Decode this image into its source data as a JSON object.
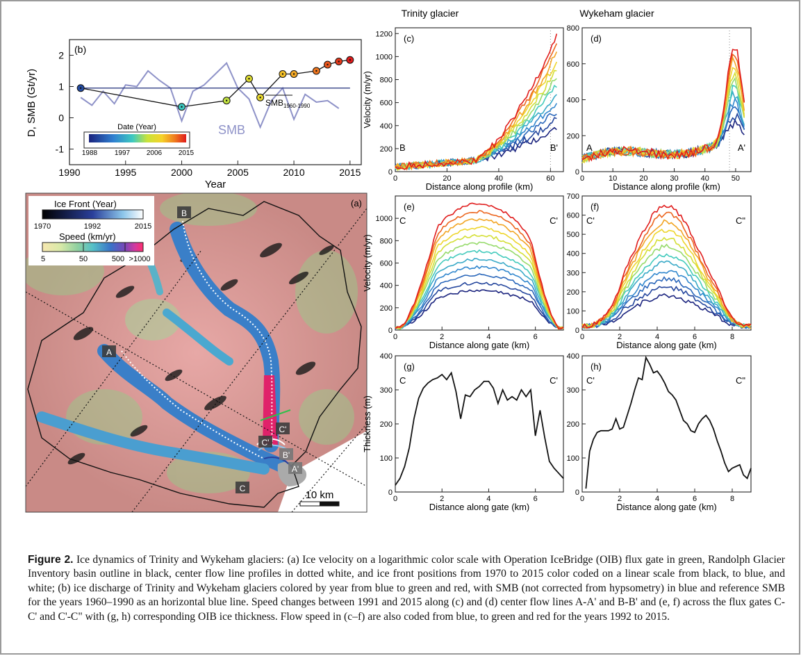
{
  "panel_b": {
    "label": "(b)",
    "ylabel": "D, SMB (Gt/yr)",
    "xlabel": "Year",
    "smb_label": "SMB",
    "ref_label": "SMB",
    "ref_sub": "1960-1990",
    "colorbar_title": "Date (Year)",
    "colorbar_ticks": [
      "1988",
      "1997",
      "2006",
      "2015"
    ]
  },
  "panel_a": {
    "label": "(a)",
    "legend_front_title": "Ice Front (Year)",
    "legend_front_ticks": [
      "1970",
      "1992",
      "2015"
    ],
    "legend_speed_title": "Speed (km/yr)",
    "legend_speed_ticks": [
      "5",
      "50",
      "500",
      ">1000"
    ],
    "markers": [
      "B",
      "A",
      "C'",
      "C'",
      "B'",
      "A'",
      "C"
    ],
    "scalebar": "10 km"
  },
  "titles": {
    "trinity": "Trinity glacier",
    "wykeham": "Wykeham glacier"
  },
  "panels_right": {
    "c": {
      "label": "(c)",
      "ylabel": "Velocity (m/yr)",
      "xlabel": "Distance along profile (km)",
      "left_mark": "B",
      "right_mark": "B'"
    },
    "d": {
      "label": "(d)",
      "ylabel": "",
      "xlabel": "Distance along profile (km)",
      "left_mark": "A",
      "right_mark": "A'"
    },
    "e": {
      "label": "(e)",
      "ylabel": "Velocity (m/yr)",
      "xlabel": "Distance along gate (km)",
      "left_mark": "C",
      "right_mark": "C'"
    },
    "f": {
      "label": "(f)",
      "ylabel": "",
      "xlabel": "Distance along gate (km)",
      "left_mark": "C'",
      "right_mark": "C\""
    },
    "g": {
      "label": "(g)",
      "ylabel": "Thickness (m)",
      "xlabel": "Distance along gate (km)",
      "left_mark": "C",
      "right_mark": "C'"
    },
    "h": {
      "label": "(h)",
      "ylabel": "",
      "xlabel": "Distance along gate (km)",
      "left_mark": "C'",
      "right_mark": "C\""
    }
  },
  "caption": {
    "lead": "Figure 2.",
    "text": "Ice dynamics of Trinity and Wykeham glaciers: (a) Ice velocity on a logarithmic color scale with Operation IceBridge (OIB) flux gate in green, Randolph Glacier Inventory basin outline in black, center flow line profiles in dotted white, and ice front positions from 1970 to 2015 color coded on a linear scale from black, to blue, and white; (b) ice discharge of Trinity and Wykeham glaciers colored by year from blue to green and red, with SMB (not corrected from hypsometry) in blue and reference SMB for the years 1960–1990 as an horizontal blue line. Speed changes between 1991 and 2015 along (c) and (d) center flow lines A-A' and B-B' and (e, f) across the flux gates C-C' and C'-C\" with (g, h) corresponding OIB ice thickness. Flow speed in (c–f) are also coded from blue, to green and red for the years 1992 to 2015."
  },
  "chart_data": [
    {
      "type": "line",
      "id": "b",
      "ylabel": "D, SMB (Gt/yr)",
      "xlabel": "Year",
      "xlim": [
        1990,
        2016
      ],
      "ylim": [
        -1.5,
        2.5
      ],
      "xticks": [
        1990,
        1995,
        2000,
        2005,
        2010,
        2015
      ],
      "yticks": [
        -1,
        0,
        1,
        2
      ],
      "series": [
        {
          "name": "SMB",
          "color": "#8e92c8",
          "x": [
            1991,
            1992,
            1993,
            1994,
            1995,
            1996,
            1997,
            1998,
            1999,
            2000,
            2001,
            2002,
            2003,
            2004,
            2005,
            2006,
            2007,
            2008,
            2009,
            2010,
            2011,
            2012,
            2013,
            2014
          ],
          "values": [
            0.65,
            0.4,
            0.85,
            0.45,
            1.05,
            1.0,
            1.5,
            1.2,
            0.95,
            -0.1,
            0.85,
            1.05,
            1.4,
            1.75,
            0.95,
            0.6,
            -0.3,
            0.55,
            0.95,
            -0.05,
            0.75,
            0.5,
            0.55,
            0.3
          ]
        },
        {
          "name": "SMB1960-1990",
          "color": "#1c2b78",
          "x": [
            1991,
            2015
          ],
          "values": [
            0.95,
            0.95
          ]
        },
        {
          "name": "D",
          "color": "#111111",
          "x": [
            1991,
            2000,
            2004,
            2006,
            2007,
            2009,
            2010,
            2012,
            2013,
            2014,
            2015
          ],
          "values": [
            0.95,
            0.35,
            0.55,
            1.25,
            0.65,
            1.4,
            1.4,
            1.5,
            1.7,
            1.8,
            1.85
          ]
        }
      ]
    },
    {
      "type": "line",
      "id": "c",
      "xlim": [
        0,
        65
      ],
      "ylim": [
        0,
        1250
      ],
      "xticks": [
        0,
        20,
        40,
        60
      ],
      "yticks": [
        0,
        200,
        400,
        600,
        800,
        1000,
        1200
      ]
    },
    {
      "type": "line",
      "id": "d",
      "xlim": [
        0,
        55
      ],
      "ylim": [
        0,
        800
      ],
      "xticks": [
        0,
        10,
        20,
        30,
        40,
        50
      ],
      "yticks": [
        0,
        200,
        400,
        600,
        800
      ]
    },
    {
      "type": "line",
      "id": "e",
      "xlim": [
        0,
        7.2
      ],
      "ylim": [
        0,
        1200
      ],
      "xticks": [
        0,
        2,
        4,
        6
      ],
      "yticks": [
        0,
        200,
        400,
        600,
        800,
        1000
      ]
    },
    {
      "type": "line",
      "id": "f",
      "xlim": [
        0,
        9
      ],
      "ylim": [
        0,
        700
      ],
      "xticks": [
        0,
        2,
        4,
        6,
        8
      ],
      "yticks": [
        0,
        100,
        200,
        300,
        400,
        500,
        600,
        700
      ]
    },
    {
      "type": "line",
      "id": "g",
      "xlim": [
        0,
        7.2
      ],
      "ylim": [
        0,
        400
      ],
      "xticks": [
        0,
        2,
        4,
        6
      ],
      "yticks": [
        0,
        100,
        200,
        300,
        400
      ],
      "series": [
        {
          "name": "",
          "color": "#111111",
          "x": [
            0,
            0.2,
            0.4,
            0.6,
            0.8,
            1.0,
            1.2,
            1.4,
            1.6,
            1.8,
            2.0,
            2.2,
            2.4,
            2.6,
            2.8,
            3.0,
            3.2,
            3.4,
            3.6,
            3.8,
            4.0,
            4.2,
            4.4,
            4.6,
            4.8,
            5.0,
            5.2,
            5.4,
            5.6,
            5.8,
            6.0,
            6.2,
            6.4,
            6.6,
            6.8,
            7.0,
            7.2
          ],
          "values": [
            20,
            40,
            75,
            130,
            215,
            275,
            305,
            320,
            330,
            335,
            345,
            330,
            350,
            295,
            215,
            285,
            280,
            300,
            310,
            325,
            325,
            305,
            260,
            300,
            270,
            280,
            270,
            300,
            280,
            300,
            165,
            240,
            160,
            90,
            70,
            55,
            40
          ]
        }
      ]
    },
    {
      "type": "line",
      "id": "h",
      "xlim": [
        0,
        9
      ],
      "ylim": [
        0,
        400
      ],
      "xticks": [
        0,
        2,
        4,
        6,
        8
      ],
      "yticks": [
        0,
        100,
        200,
        300,
        400
      ],
      "series": [
        {
          "name": "",
          "color": "#111111",
          "x": [
            0.2,
            0.4,
            0.6,
            0.8,
            1.0,
            1.2,
            1.4,
            1.6,
            1.8,
            2.0,
            2.2,
            2.4,
            2.6,
            2.8,
            3.0,
            3.2,
            3.4,
            3.6,
            3.8,
            4.0,
            4.2,
            4.4,
            4.6,
            4.8,
            5.0,
            5.2,
            5.4,
            5.6,
            5.8,
            6.0,
            6.2,
            6.4,
            6.6,
            6.8,
            7.0,
            7.2,
            7.4,
            7.6,
            7.8,
            8.0,
            8.2,
            8.4,
            8.6,
            8.8,
            9.0
          ],
          "values": [
            10,
            120,
            155,
            175,
            180,
            180,
            180,
            185,
            215,
            185,
            190,
            225,
            260,
            300,
            335,
            330,
            395,
            375,
            350,
            355,
            340,
            320,
            295,
            285,
            270,
            240,
            210,
            200,
            180,
            175,
            200,
            215,
            225,
            210,
            185,
            150,
            120,
            85,
            60,
            70,
            75,
            80,
            50,
            40,
            70
          ]
        }
      ]
    }
  ]
}
